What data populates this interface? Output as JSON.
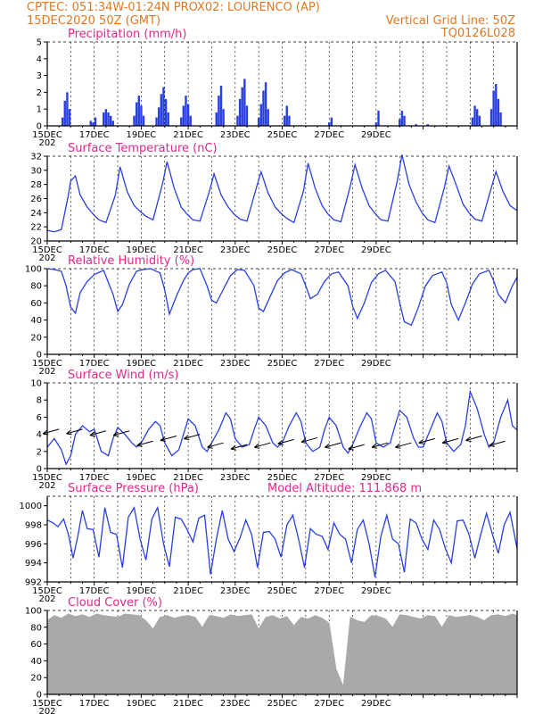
{
  "header": {
    "line1_left": "CPTEC:   051:34W-01:24N   PROX02: LOURENCO (AP)",
    "line2_left": "15DEC2020 50Z (GMT)",
    "line2_right": "Vertical Grid Line: 50Z",
    "line3_right": "TQ0126L028"
  },
  "x_dates": [
    "15DEC",
    "17DEC",
    "19DEC",
    "21DEC",
    "23DEC",
    "25DEC",
    "27DEC",
    "29DEC"
  ],
  "year_label": "202",
  "colors": {
    "header": "#e07820",
    "title": "#e0288c",
    "line": "#2a3fe0",
    "bar": "#2a3fe0",
    "cloud": "#a9a9a9",
    "arrow": "#000000"
  },
  "chart_data": [
    {
      "type": "bar",
      "title": "Precipitation (mm/h)",
      "ylim": [
        0,
        5
      ],
      "yticks": [
        0,
        1,
        2,
        3,
        4,
        5
      ],
      "x_unit": "days since 15DEC 00Z",
      "x": [
        0.65,
        0.75,
        0.85,
        0.95,
        1.85,
        1.95,
        2.05,
        2.4,
        2.5,
        2.6,
        2.7,
        2.8,
        3.7,
        3.8,
        3.9,
        4.0,
        4.1,
        4.65,
        4.75,
        4.85,
        4.95,
        5.05,
        5.15,
        5.7,
        5.8,
        5.9,
        6.0,
        6.1,
        7.2,
        7.3,
        7.4,
        7.5,
        8.1,
        8.2,
        8.3,
        8.4,
        8.5,
        9.0,
        9.1,
        9.2,
        9.3,
        9.4,
        10.1,
        10.2,
        10.3,
        12.0,
        12.1,
        14.0,
        14.1,
        15.0,
        15.1,
        15.2,
        15.7,
        16.2,
        18.1,
        18.2,
        18.3,
        18.4,
        18.9,
        19.0,
        19.1,
        19.2,
        19.3
      ],
      "values": [
        0.5,
        1.5,
        2.0,
        1.0,
        0.3,
        0.2,
        0.5,
        0.8,
        1.0,
        0.8,
        0.6,
        0.3,
        0.6,
        1.4,
        1.8,
        1.2,
        0.6,
        0.5,
        1.1,
        1.9,
        2.3,
        1.6,
        0.8,
        0.5,
        1.2,
        1.8,
        1.3,
        0.6,
        0.8,
        1.8,
        2.4,
        1.0,
        0.6,
        1.6,
        2.3,
        2.8,
        1.2,
        0.5,
        1.3,
        2.1,
        2.6,
        1.0,
        0.6,
        1.2,
        0.6,
        0.2,
        0.5,
        0.2,
        0.9,
        0.4,
        0.9,
        0.6,
        0.1,
        0.1,
        0.5,
        1.2,
        1.0,
        0.6,
        1.0,
        2.1,
        2.5,
        1.6,
        0.8
      ]
    },
    {
      "type": "line",
      "title": "Surface Temperature (nC)",
      "ylim": [
        20,
        32
      ],
      "yticks": [
        20,
        22,
        24,
        26,
        28,
        30,
        32
      ],
      "x_unit": "days since 15DEC 00Z",
      "x": [
        0,
        0.3,
        0.6,
        0.9,
        1.0,
        1.2,
        1.4,
        1.7,
        1.95,
        2.2,
        2.5,
        2.9,
        3.1,
        3.4,
        3.7,
        3.95,
        4.2,
        4.5,
        4.9,
        5.1,
        5.4,
        5.7,
        5.95,
        6.2,
        6.5,
        6.9,
        7.1,
        7.4,
        7.7,
        7.95,
        8.2,
        8.5,
        8.9,
        9.1,
        9.4,
        9.7,
        9.95,
        10.2,
        10.5,
        10.9,
        11.1,
        11.4,
        11.7,
        11.95,
        12.2,
        12.5,
        12.9,
        13.1,
        13.4,
        13.7,
        13.95,
        14.2,
        14.5,
        14.9,
        15.1,
        15.4,
        15.7,
        15.95,
        16.2,
        16.5,
        16.9,
        17.1,
        17.4,
        17.7,
        17.95,
        18.2,
        18.5,
        18.9,
        19.1,
        19.4,
        19.7,
        20.0
      ],
      "values": [
        21.5,
        21.3,
        21.6,
        26.5,
        28.5,
        29.2,
        26.5,
        24.8,
        23.8,
        23.0,
        22.6,
        26.5,
        30.5,
        27.0,
        25.0,
        24.2,
        23.5,
        23.0,
        28.0,
        31.2,
        27.5,
        24.8,
        23.8,
        23.0,
        22.8,
        27.0,
        29.5,
        26.5,
        24.8,
        23.8,
        23.1,
        22.8,
        27.5,
        29.8,
        26.8,
        24.8,
        23.9,
        23.2,
        22.6,
        27.0,
        31.0,
        27.5,
        25.0,
        23.8,
        23.0,
        22.7,
        27.8,
        30.8,
        27.5,
        25.0,
        23.9,
        23.0,
        22.8,
        28.5,
        32.2,
        28.0,
        25.5,
        24.0,
        23.0,
        22.6,
        27.5,
        30.6,
        28.0,
        25.2,
        24.0,
        23.1,
        22.8,
        27.5,
        29.8,
        27.0,
        25.0,
        24.3
      ]
    },
    {
      "type": "line",
      "title": "Relative Humidity (%)",
      "ylim": [
        0,
        100
      ],
      "yticks": [
        0,
        20,
        40,
        60,
        80,
        100
      ],
      "x_unit": "days since 15DEC 00Z",
      "x": [
        0,
        0.3,
        0.6,
        0.8,
        1.0,
        1.2,
        1.4,
        1.7,
        2.0,
        2.4,
        2.8,
        3.0,
        3.2,
        3.5,
        3.8,
        4.1,
        4.4,
        4.8,
        5.0,
        5.2,
        5.5,
        5.8,
        6.0,
        6.2,
        6.5,
        6.8,
        7.0,
        7.2,
        7.5,
        7.8,
        8.1,
        8.4,
        8.8,
        9.0,
        9.2,
        9.5,
        9.8,
        10.1,
        10.4,
        10.8,
        11.0,
        11.2,
        11.5,
        11.8,
        12.1,
        12.4,
        12.8,
        13.0,
        13.2,
        13.5,
        13.8,
        14.1,
        14.4,
        14.8,
        15.0,
        15.2,
        15.5,
        15.8,
        16.1,
        16.4,
        16.8,
        17.0,
        17.2,
        17.5,
        17.8,
        18.1,
        18.4,
        18.8,
        19.0,
        19.2,
        19.5,
        19.8,
        20.0
      ],
      "values": [
        100,
        99,
        97,
        80,
        55,
        48,
        72,
        85,
        93,
        98,
        70,
        50,
        58,
        82,
        97,
        99,
        100,
        95,
        75,
        47,
        68,
        86,
        95,
        99,
        100,
        80,
        63,
        60,
        76,
        92,
        99,
        98,
        80,
        54,
        50,
        68,
        86,
        95,
        99,
        94,
        80,
        65,
        70,
        85,
        94,
        96,
        80,
        56,
        42,
        60,
        84,
        94,
        98,
        85,
        60,
        38,
        34,
        55,
        80,
        92,
        96,
        84,
        58,
        40,
        60,
        82,
        94,
        98,
        86,
        70,
        60,
        80,
        90
      ]
    },
    {
      "type": "line",
      "title": "Surface Wind (m/s)",
      "ylim": [
        0,
        10
      ],
      "yticks": [
        0,
        2,
        4,
        6,
        8,
        10
      ],
      "x_unit": "days since 15DEC 00Z",
      "x": [
        0,
        0.3,
        0.6,
        0.8,
        1.0,
        1.2,
        1.5,
        1.8,
        2.0,
        2.3,
        2.6,
        2.8,
        3.0,
        3.3,
        3.6,
        3.8,
        4.0,
        4.3,
        4.6,
        4.8,
        5.0,
        5.3,
        5.6,
        5.8,
        6.0,
        6.3,
        6.6,
        6.8,
        7.0,
        7.3,
        7.6,
        7.8,
        8.0,
        8.3,
        8.6,
        8.8,
        9.0,
        9.3,
        9.6,
        9.8,
        10.0,
        10.3,
        10.6,
        10.8,
        11.0,
        11.3,
        11.6,
        11.8,
        12.0,
        12.3,
        12.6,
        12.8,
        13.0,
        13.3,
        13.6,
        13.8,
        14.0,
        14.3,
        14.6,
        14.8,
        15.0,
        15.3,
        15.6,
        15.8,
        16.0,
        16.3,
        16.6,
        16.8,
        17.0,
        17.3,
        17.6,
        17.8,
        18.0,
        18.3,
        18.6,
        18.8,
        19.0,
        19.3,
        19.6,
        19.8,
        20.0
      ],
      "values": [
        2.5,
        3.5,
        2.2,
        0.5,
        1.5,
        4.0,
        5.0,
        4.3,
        4.6,
        2.0,
        1.5,
        3.5,
        4.8,
        4.0,
        3.0,
        2.5,
        3.0,
        4.5,
        5.5,
        5.0,
        3.0,
        1.5,
        2.2,
        4.0,
        5.8,
        5.0,
        2.5,
        2.0,
        3.0,
        4.5,
        6.5,
        5.8,
        3.5,
        2.5,
        2.8,
        4.5,
        6.0,
        5.0,
        3.0,
        2.5,
        3.0,
        5.0,
        6.5,
        5.5,
        3.0,
        2.0,
        2.5,
        4.5,
        6.0,
        5.0,
        2.5,
        1.8,
        2.8,
        4.8,
        6.5,
        5.8,
        3.0,
        2.5,
        3.0,
        5.0,
        6.8,
        6.0,
        3.5,
        2.5,
        2.5,
        4.5,
        6.5,
        5.5,
        3.0,
        2.0,
        2.8,
        5.0,
        9.0,
        7.0,
        4.0,
        2.5,
        3.0,
        6.0,
        8.0,
        5.0,
        4.5
      ],
      "arrows": [
        {
          "x": 0.5,
          "speed": 4.6
        },
        {
          "x": 1.5,
          "speed": 4.6
        },
        {
          "x": 2.5,
          "speed": 4.4
        },
        {
          "x": 3.5,
          "speed": 4.4
        },
        {
          "x": 4.5,
          "speed": 3.2
        },
        {
          "x": 5.5,
          "speed": 3.8
        },
        {
          "x": 6.5,
          "speed": 4.0
        },
        {
          "x": 7.5,
          "speed": 3.0
        },
        {
          "x": 8.5,
          "speed": 2.8
        },
        {
          "x": 9.5,
          "speed": 3.0
        },
        {
          "x": 10.5,
          "speed": 3.4
        },
        {
          "x": 11.5,
          "speed": 3.6
        },
        {
          "x": 12.5,
          "speed": 3.0
        },
        {
          "x": 13.5,
          "speed": 2.8
        },
        {
          "x": 14.5,
          "speed": 3.0
        },
        {
          "x": 15.5,
          "speed": 3.0
        },
        {
          "x": 16.5,
          "speed": 3.5
        },
        {
          "x": 17.5,
          "speed": 3.5
        },
        {
          "x": 18.5,
          "speed": 3.8
        },
        {
          "x": 19.5,
          "speed": 3.2
        }
      ]
    },
    {
      "type": "line",
      "title": "Surface Pressure (hPa)",
      "subtitle": "Model Altitude: 111.868  m",
      "ylim": [
        992,
        1001
      ],
      "yticks": [
        992,
        994,
        996,
        998,
        1000
      ],
      "x_unit": "days since 15DEC 00Z",
      "x": [
        0,
        0.25,
        0.45,
        0.7,
        0.9,
        1.1,
        1.3,
        1.5,
        1.7,
        1.95,
        2.2,
        2.45,
        2.7,
        2.95,
        3.2,
        3.45,
        3.7,
        3.95,
        4.2,
        4.45,
        4.7,
        4.95,
        5.2,
        5.45,
        5.7,
        5.95,
        6.2,
        6.45,
        6.7,
        6.95,
        7.2,
        7.45,
        7.7,
        7.95,
        8.2,
        8.45,
        8.7,
        8.95,
        9.2,
        9.45,
        9.7,
        9.95,
        10.2,
        10.45,
        10.7,
        10.95,
        11.2,
        11.45,
        11.7,
        11.95,
        12.2,
        12.45,
        12.7,
        12.95,
        13.2,
        13.45,
        13.7,
        13.95,
        14.2,
        14.45,
        14.7,
        14.95,
        15.2,
        15.45,
        15.7,
        15.95,
        16.2,
        16.45,
        16.7,
        16.95,
        17.2,
        17.45,
        17.7,
        17.95,
        18.2,
        18.45,
        18.7,
        18.95,
        19.2,
        19.45,
        19.7,
        20.0
      ],
      "values": [
        998.5,
        998.2,
        997.8,
        998.6,
        997.0,
        994.5,
        996.8,
        999.5,
        997.6,
        997.5,
        994.6,
        999.8,
        997.2,
        997.0,
        993.5,
        998.8,
        999.8,
        996.5,
        994.3,
        998.6,
        999.8,
        996.0,
        993.6,
        998.8,
        998.6,
        997.5,
        996.2,
        998.7,
        999.0,
        992.8,
        996.5,
        999.5,
        996.5,
        995.2,
        996.6,
        998.5,
        997.0,
        993.5,
        997.2,
        997.3,
        996.5,
        994.6,
        998.0,
        999.0,
        996.5,
        993.5,
        997.6,
        997.0,
        996.8,
        995.4,
        998.2,
        997.0,
        996.5,
        994.0,
        997.5,
        998.5,
        996.0,
        992.5,
        996.8,
        999.0,
        996.5,
        996.0,
        993.0,
        998.6,
        998.2,
        996.5,
        995.4,
        998.5,
        997.5,
        995.5,
        994.0,
        998.4,
        998.5,
        997.0,
        994.5,
        997.0,
        999.2,
        997.0,
        995.0,
        998.0,
        999.3,
        995.5
      ]
    },
    {
      "type": "area",
      "title": "Cloud Cover (%)",
      "ylim": [
        0,
        100
      ],
      "yticks": [
        0,
        20,
        40,
        60,
        80,
        100
      ],
      "x_unit": "days since 15DEC 00Z",
      "x": [
        0,
        0.3,
        0.6,
        0.9,
        1.2,
        1.5,
        1.8,
        2.1,
        2.4,
        2.7,
        3.0,
        3.3,
        3.6,
        3.9,
        4.2,
        4.5,
        4.8,
        5.1,
        5.4,
        5.7,
        6.0,
        6.3,
        6.6,
        6.9,
        7.2,
        7.5,
        7.8,
        8.1,
        8.4,
        8.7,
        9.0,
        9.3,
        9.6,
        9.9,
        10.2,
        10.5,
        10.8,
        11.1,
        11.4,
        11.7,
        12.0,
        12.3,
        12.6,
        12.9,
        13.2,
        13.5,
        13.8,
        14.1,
        14.4,
        14.7,
        15.0,
        15.3,
        15.6,
        15.9,
        16.2,
        16.5,
        16.8,
        17.1,
        17.4,
        17.7,
        18.0,
        18.3,
        18.6,
        18.9,
        19.2,
        19.5,
        19.8,
        20.0
      ],
      "values": [
        88,
        94,
        91,
        96,
        93,
        95,
        92,
        96,
        94,
        93,
        92,
        96,
        95,
        94,
        88,
        78,
        92,
        94,
        91,
        93,
        94,
        92,
        80,
        94,
        93,
        91,
        95,
        93,
        94,
        95,
        78,
        92,
        94,
        90,
        93,
        82,
        92,
        90,
        94,
        91,
        85,
        30,
        10,
        92,
        88,
        86,
        94,
        93,
        90,
        80,
        95,
        94,
        92,
        90,
        94,
        93,
        80,
        94,
        92,
        93,
        94,
        92,
        88,
        94,
        95,
        93,
        96,
        94
      ]
    }
  ]
}
